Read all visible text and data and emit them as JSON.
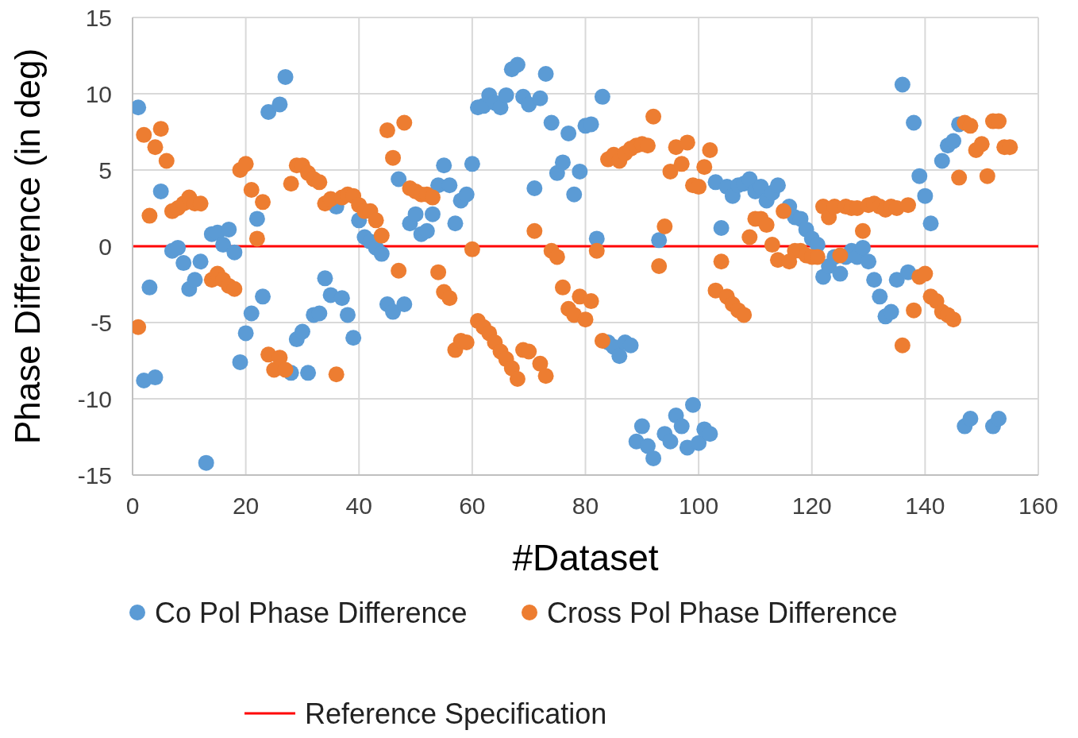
{
  "chart_data": {
    "type": "scatter",
    "xlabel": "#Dataset",
    "ylabel": "Phase Difference (in deg)",
    "xlim": [
      0,
      160
    ],
    "xticks": [
      0,
      20,
      40,
      60,
      80,
      100,
      120,
      140,
      160
    ],
    "ylim": [
      -15,
      15
    ],
    "yticks": [
      -15,
      -10,
      -5,
      0,
      5,
      10,
      15
    ],
    "grid": true,
    "legend": "bottom",
    "marker": "circle",
    "ref_lines": [
      {
        "axis": "y",
        "value": 0,
        "label": "Reference Specification",
        "color": "#ff0000"
      }
    ],
    "series": [
      {
        "name": "Co Pol Phase Difference",
        "color": "#5b9bd5",
        "x": [
          1,
          2,
          3,
          4,
          5,
          7,
          8,
          9,
          10,
          11,
          12,
          13,
          14,
          15,
          16,
          17,
          18,
          19,
          20,
          21,
          22,
          23,
          24,
          26,
          27,
          28,
          29,
          30,
          31,
          32,
          33,
          34,
          35,
          36,
          37,
          38,
          39,
          40,
          41,
          42,
          43,
          44,
          45,
          46,
          47,
          48,
          49,
          50,
          51,
          52,
          53,
          54,
          55,
          56,
          57,
          58,
          59,
          60,
          61,
          62,
          63,
          64,
          65,
          66,
          67,
          68,
          69,
          70,
          71,
          72,
          73,
          74,
          75,
          76,
          77,
          78,
          79,
          80,
          81,
          82,
          83,
          84,
          85,
          86,
          87,
          88,
          89,
          90,
          91,
          92,
          93,
          94,
          95,
          96,
          97,
          98,
          99,
          100,
          101,
          102,
          103,
          104,
          105,
          106,
          107,
          108,
          109,
          110,
          111,
          112,
          113,
          114,
          115,
          116,
          117,
          118,
          119,
          120,
          121,
          122,
          123,
          124,
          125,
          126,
          127,
          128,
          129,
          130,
          131,
          132,
          133,
          134,
          135,
          136,
          137,
          138,
          139,
          140,
          141,
          143,
          144,
          145,
          146,
          147,
          148,
          152,
          153
        ],
        "values": [
          9.1,
          -8.8,
          -2.7,
          -8.6,
          3.6,
          -0.3,
          -0.1,
          -1.1,
          -2.8,
          -2.2,
          -1.0,
          -14.2,
          0.8,
          0.9,
          0.1,
          1.1,
          -0.4,
          -7.6,
          -5.7,
          -4.4,
          1.8,
          -3.3,
          8.8,
          9.3,
          11.1,
          -8.3,
          -6.1,
          -5.6,
          -8.3,
          -4.5,
          -4.4,
          -2.1,
          -3.2,
          2.6,
          -3.4,
          -4.5,
          -6.0,
          1.7,
          0.6,
          0.3,
          -0.1,
          -0.5,
          -3.8,
          -4.3,
          4.4,
          -3.8,
          1.5,
          2.1,
          0.8,
          1.0,
          2.1,
          4.0,
          5.3,
          4.0,
          1.5,
          3.0,
          3.4,
          5.4,
          9.1,
          9.2,
          9.9,
          9.4,
          9.1,
          9.9,
          11.6,
          11.9,
          9.8,
          9.3,
          3.8,
          9.7,
          11.3,
          8.1,
          4.8,
          5.5,
          7.4,
          3.4,
          4.9,
          7.9,
          8.0,
          0.5,
          9.8,
          -6.3,
          -6.6,
          -7.2,
          -6.3,
          -6.5,
          -12.8,
          -11.8,
          -13.1,
          -13.9,
          0.4,
          -12.3,
          -12.8,
          -11.1,
          -11.8,
          -13.2,
          -10.4,
          -12.9,
          -12.0,
          -12.3,
          4.2,
          1.2,
          3.9,
          3.3,
          4.0,
          4.1,
          4.4,
          3.6,
          3.9,
          3.0,
          3.5,
          4.0,
          null,
          2.6,
          1.9,
          1.8,
          1.1,
          0.5,
          0.1,
          -2.0,
          -1.3,
          -0.7,
          -1.8,
          -0.7,
          -0.3,
          -0.7,
          -0.1,
          -1.0,
          -2.2,
          -3.3,
          -4.6,
          -4.3,
          -2.2,
          10.6,
          -1.7,
          8.1,
          4.6,
          3.3,
          1.5,
          5.6,
          6.6,
          6.9,
          8.0,
          -11.8,
          -11.3,
          -11.8,
          -11.3
        ]
      },
      {
        "name": "Cross Pol Phase Difference",
        "color": "#ed7d31",
        "x": [
          1,
          2,
          3,
          4,
          5,
          6,
          7,
          8,
          9,
          10,
          11,
          12,
          14,
          15,
          16,
          17,
          18,
          19,
          20,
          21,
          22,
          23,
          24,
          25,
          26,
          27,
          28,
          29,
          30,
          31,
          32,
          33,
          34,
          35,
          36,
          37,
          38,
          39,
          40,
          41,
          42,
          43,
          44,
          45,
          46,
          47,
          48,
          49,
          50,
          51,
          52,
          53,
          54,
          55,
          56,
          57,
          58,
          59,
          60,
          61,
          62,
          63,
          64,
          65,
          66,
          67,
          68,
          69,
          70,
          71,
          72,
          73,
          74,
          75,
          76,
          77,
          78,
          79,
          80,
          81,
          82,
          83,
          84,
          85,
          86,
          87,
          88,
          89,
          90,
          91,
          92,
          93,
          94,
          95,
          96,
          97,
          98,
          99,
          100,
          101,
          102,
          103,
          104,
          105,
          106,
          107,
          108,
          109,
          110,
          111,
          112,
          113,
          114,
          115,
          116,
          117,
          118,
          119,
          120,
          121,
          122,
          123,
          124,
          125,
          126,
          127,
          128,
          129,
          130,
          131,
          132,
          133,
          134,
          135,
          136,
          137,
          138,
          139,
          140,
          141,
          142,
          143,
          144,
          145,
          146,
          147,
          148,
          149,
          150,
          151,
          152,
          153,
          154,
          155
        ],
        "values": [
          -5.3,
          7.3,
          2.0,
          6.5,
          7.7,
          5.6,
          2.3,
          2.5,
          2.8,
          3.2,
          2.8,
          2.8,
          -2.2,
          -1.8,
          -2.2,
          -2.6,
          -2.8,
          5.0,
          5.4,
          3.7,
          0.5,
          2.9,
          -7.1,
          -8.1,
          -7.3,
          -8.1,
          4.1,
          5.3,
          5.3,
          4.8,
          4.4,
          4.2,
          2.8,
          3.1,
          -8.4,
          3.2,
          3.4,
          3.3,
          2.7,
          2.3,
          2.3,
          1.7,
          0.7,
          7.6,
          5.8,
          -1.6,
          8.1,
          3.8,
          3.6,
          3.4,
          3.4,
          3.2,
          -1.7,
          -3.0,
          -3.4,
          -6.8,
          -6.2,
          -6.3,
          -0.2,
          -4.9,
          -5.3,
          -5.7,
          -6.3,
          -6.9,
          -7.4,
          -8.0,
          -8.7,
          -6.8,
          -6.9,
          1.0,
          -7.7,
          -8.5,
          -0.3,
          -0.7,
          -2.7,
          -4.1,
          -4.5,
          -3.3,
          -4.8,
          -3.6,
          -0.3,
          -6.2,
          5.7,
          6.0,
          5.6,
          6.1,
          6.4,
          6.6,
          6.7,
          6.6,
          8.5,
          -1.3,
          1.3,
          4.9,
          6.5,
          5.4,
          6.8,
          4.0,
          3.9,
          5.2,
          6.3,
          -2.9,
          -1.0,
          -3.3,
          -3.8,
          -4.2,
          -4.5,
          0.6,
          1.8,
          1.8,
          1.4,
          0.1,
          -0.9,
          2.3,
          -1.0,
          -0.3,
          -0.3,
          -0.6,
          -0.7,
          -0.7,
          2.6,
          1.9,
          2.6,
          -0.6,
          2.6,
          2.5,
          2.5,
          1.0,
          2.7,
          2.8,
          2.6,
          2.4,
          2.6,
          2.5,
          -6.5,
          2.7,
          -4.2,
          -2.0,
          -1.8,
          -3.3,
          -3.6,
          -4.3,
          -4.5,
          -4.8,
          4.5,
          8.1,
          7.9,
          6.3,
          6.7,
          4.6,
          8.2,
          8.2,
          6.5,
          6.5
        ]
      }
    ]
  }
}
